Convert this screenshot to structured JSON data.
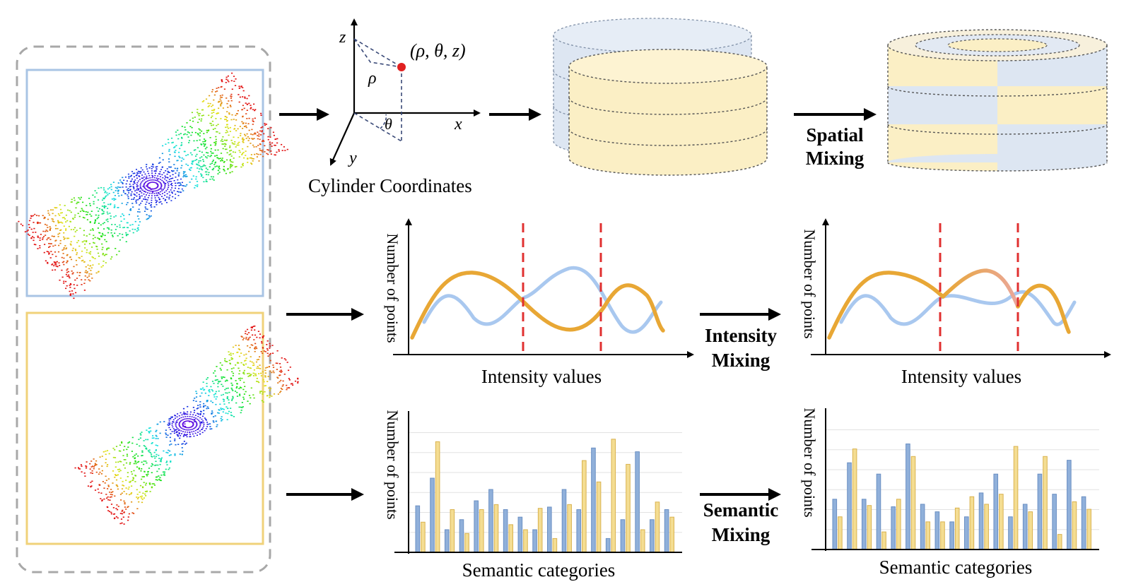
{
  "coordinates": {
    "caption": "Cylinder Coordinates",
    "point_label": "(ρ, θ, z)",
    "axes": {
      "z": "z",
      "x": "x",
      "y": "y",
      "rho": "ρ",
      "theta": "θ"
    }
  },
  "steps": {
    "spatial": [
      "Spatial",
      "Mixing"
    ],
    "intensity": [
      "Intensity",
      "Mixing"
    ],
    "semantic": [
      "Semantic",
      "Mixing"
    ]
  },
  "intensity_charts": {
    "ylabel": "Number of points",
    "xlabel": "Intensity values"
  },
  "semantic_charts": {
    "ylabel": "Number of points",
    "xlabel": "Semantic categories"
  },
  "colors": {
    "blue": "#a9c8ef",
    "orange": "#e8a735",
    "blue_bar": "#90b0da",
    "yellow_bar": "#f4dd92",
    "red_dash": "#e03030",
    "panel_blue": "#a9c4e4",
    "panel_yellow": "#f0d27a",
    "cyl_blue": "#dde6f2",
    "cyl_yellow": "#fbefc5",
    "frame": "#a8a8a8"
  },
  "chart_data": [
    {
      "type": "bar",
      "series": [
        {
          "values": [
            37,
            59,
            18,
            26,
            41,
            50,
            34,
            28,
            18,
            36,
            50,
            34,
            83,
            11,
            26,
            80,
            26,
            34
          ]
        },
        {
          "values": [
            24,
            88,
            34,
            15,
            34,
            38,
            22,
            18,
            35,
            11,
            38,
            73,
            56,
            90,
            70,
            18,
            40,
            28
          ]
        }
      ]
    },
    {
      "type": "bar",
      "series": [
        {
          "values": [
            40,
            69,
            40,
            60,
            34,
            84,
            36,
            30,
            22,
            26,
            45,
            60,
            26,
            36,
            60,
            44,
            71,
            42
          ]
        },
        {
          "values": [
            26,
            80,
            35,
            14,
            40,
            74,
            22,
            22,
            33,
            42,
            36,
            44,
            82,
            30,
            74,
            12,
            38,
            32
          ]
        }
      ]
    }
  ]
}
